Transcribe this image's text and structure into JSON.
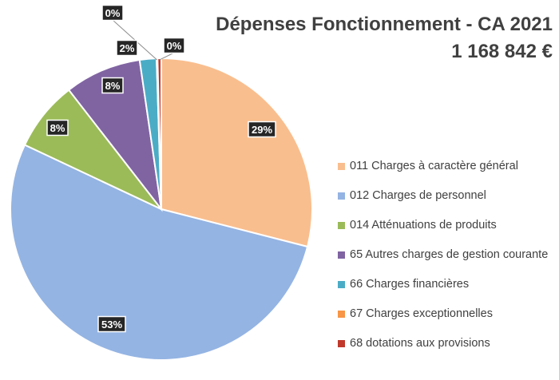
{
  "chart_data": {
    "type": "pie",
    "title": "Dépenses Fonctionnement - CA 2021",
    "subtitle": "1 168 842 €",
    "legend_position": "right",
    "slices": [
      {
        "name": "011 Charges à caractère général",
        "value": 29,
        "label": "29%",
        "color": "#F9BE8E"
      },
      {
        "name": "012 Charges de personnel",
        "value": 53,
        "label": "53%",
        "color": "#94B4E3"
      },
      {
        "name": "014 Atténuations de produits",
        "value": 7.5,
        "label": "8%",
        "color": "#9BBB59"
      },
      {
        "name": "65 Autres charges de gestion courante",
        "value": 8.2,
        "label": "8%",
        "color": "#8064A2"
      },
      {
        "name": "66 Charges financières",
        "value": 1.8,
        "label": "2%",
        "color": "#4BACC6"
      },
      {
        "name": "67 Charges exceptionnelles",
        "value": 0.1,
        "label": "0%",
        "color": "#F79646"
      },
      {
        "name": "68 dotations aux provisions",
        "value": 0.4,
        "label": "0%",
        "color": "#C0392B"
      }
    ]
  }
}
